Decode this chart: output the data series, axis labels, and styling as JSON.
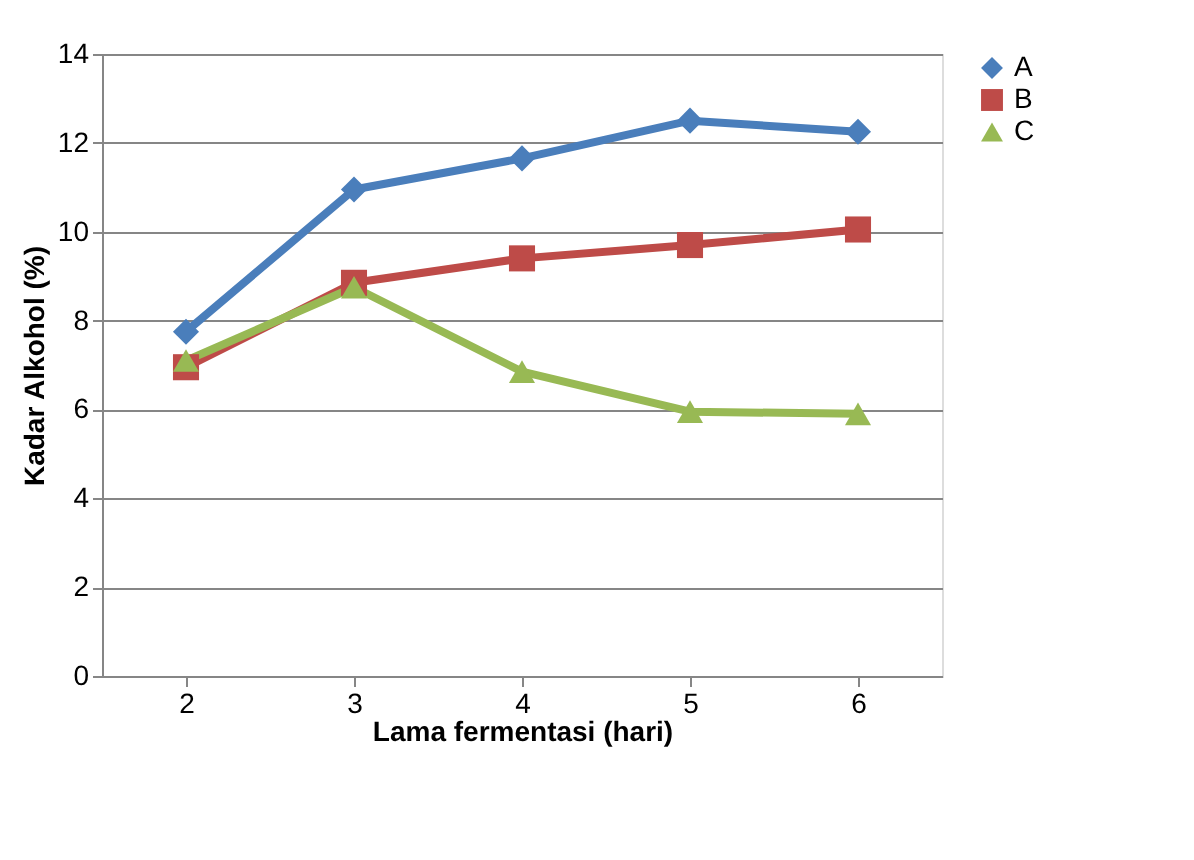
{
  "chart_data": {
    "type": "line",
    "xlabel": "Lama fermentasi (hari)",
    "ylabel": "Kadar Alkohol (%)",
    "categories": [
      "2",
      "3",
      "4",
      "5",
      "6"
    ],
    "series": [
      {
        "name": "A",
        "color": "#4a7ebb",
        "marker": "diamond",
        "values": [
          7.75,
          10.95,
          11.65,
          12.5,
          12.25
        ]
      },
      {
        "name": "B",
        "color": "#be4b48",
        "marker": "square",
        "values": [
          6.95,
          8.85,
          9.4,
          9.7,
          10.05
        ]
      },
      {
        "name": "C",
        "color": "#98b954",
        "marker": "triangle",
        "values": [
          7.1,
          8.75,
          6.85,
          5.95,
          5.9
        ]
      }
    ],
    "ylim": [
      0,
      14
    ],
    "yticks": [
      0,
      2,
      4,
      6,
      8,
      10,
      12,
      14
    ],
    "grid": "y",
    "legend": "right"
  }
}
